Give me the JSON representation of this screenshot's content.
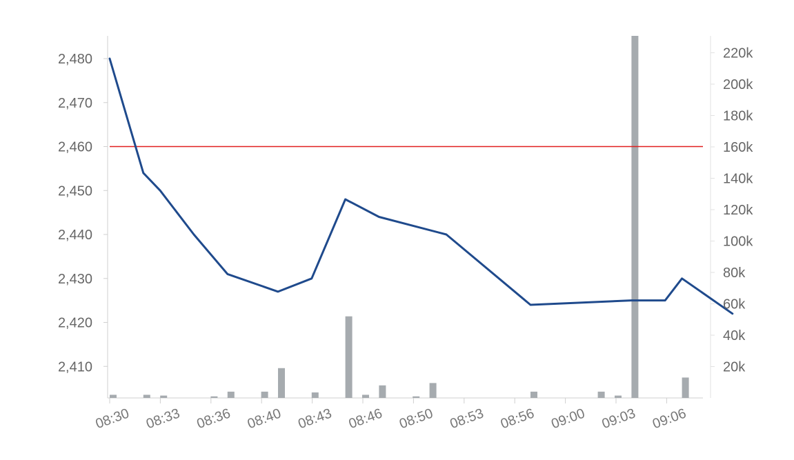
{
  "chart_data": {
    "type": "line",
    "title": "",
    "xlabel": "",
    "ylabel": "",
    "x_ticks": [
      "08:30",
      "08:33",
      "08:36",
      "08:40",
      "08:43",
      "08:46",
      "08:50",
      "08:53",
      "08:56",
      "09:00",
      "09:03",
      "09:06"
    ],
    "y_left": {
      "ticks": [
        "2,410",
        "2,420",
        "2,430",
        "2,440",
        "2,450",
        "2,460",
        "2,470",
        "2,480"
      ],
      "tick_values": [
        2410,
        2420,
        2430,
        2440,
        2450,
        2460,
        2470,
        2480
      ],
      "range": [
        2403,
        2485
      ]
    },
    "y_right": {
      "ticks": [
        "20k",
        "40k",
        "60k",
        "80k",
        "100k",
        "120k",
        "140k",
        "160k",
        "180k",
        "200k",
        "220k"
      ],
      "tick_values": [
        20000,
        40000,
        60000,
        80000,
        100000,
        120000,
        140000,
        160000,
        180000,
        200000,
        220000
      ],
      "range": [
        0,
        232000
      ]
    },
    "reference_line": {
      "value": 2460,
      "color": "#e01e1e"
    },
    "series": [
      {
        "type": "line",
        "color": "#1f4a8c",
        "x": [
          "08:30",
          "08:32",
          "08:33",
          "08:35",
          "08:37",
          "08:40",
          "08:42",
          "08:44",
          "08:46",
          "08:50",
          "08:55",
          "09:01",
          "09:03",
          "09:04",
          "09:07"
        ],
        "values": [
          2480,
          2454,
          2450,
          2440,
          2431,
          2427,
          2430,
          2448,
          2444,
          2440,
          2424,
          2425,
          2425,
          2430,
          2422
        ]
      },
      {
        "type": "bar",
        "color": "#a6abaf",
        "x": [
          "08:30",
          "08:32",
          "08:33",
          "08:36",
          "08:37",
          "08:39",
          "08:40",
          "08:42",
          "08:44",
          "08:45",
          "08:46",
          "08:48",
          "08:49",
          "08:55",
          "08:59",
          "09:00",
          "09:01",
          "09:04"
        ],
        "values": [
          2000,
          2000,
          1500,
          1000,
          4000,
          4000,
          19000,
          3500,
          52000,
          2000,
          8000,
          1000,
          9500,
          4000,
          4000,
          1500,
          240000,
          13000
        ]
      }
    ],
    "grid": false,
    "legend": "none"
  }
}
